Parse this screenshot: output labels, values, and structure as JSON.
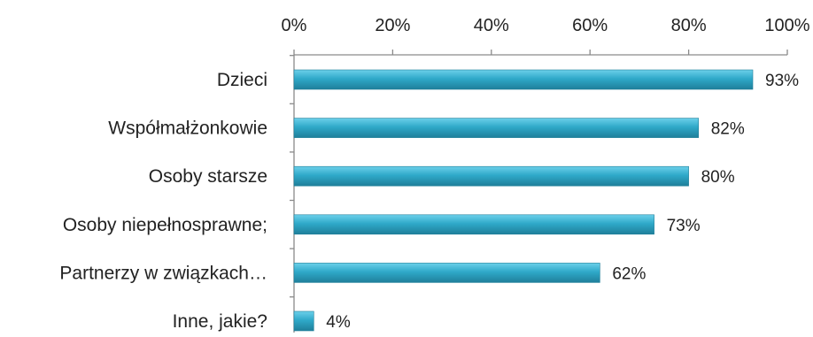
{
  "chart_data": {
    "type": "bar",
    "orientation": "horizontal",
    "title": "",
    "xlabel": "",
    "ylabel": "",
    "xlim": [
      0,
      100
    ],
    "x_ticks": [
      "0%",
      "20%",
      "40%",
      "60%",
      "80%",
      "100%"
    ],
    "x_axis_position": "top",
    "grid": false,
    "legend": "none",
    "categories": [
      "Dzieci",
      "Współmałżonkowie",
      "Osoby starsze",
      "Osoby niepełnosprawne;",
      "Partnerzy w związkach…",
      "Inne, jakie?"
    ],
    "values": [
      93,
      82,
      80,
      73,
      62,
      4
    ],
    "data_labels": [
      "93%",
      "82%",
      "80%",
      "73%",
      "62%",
      "4%"
    ],
    "bar_color": "#2fa9c9",
    "bar_color_dark": "#1f7f9a"
  }
}
